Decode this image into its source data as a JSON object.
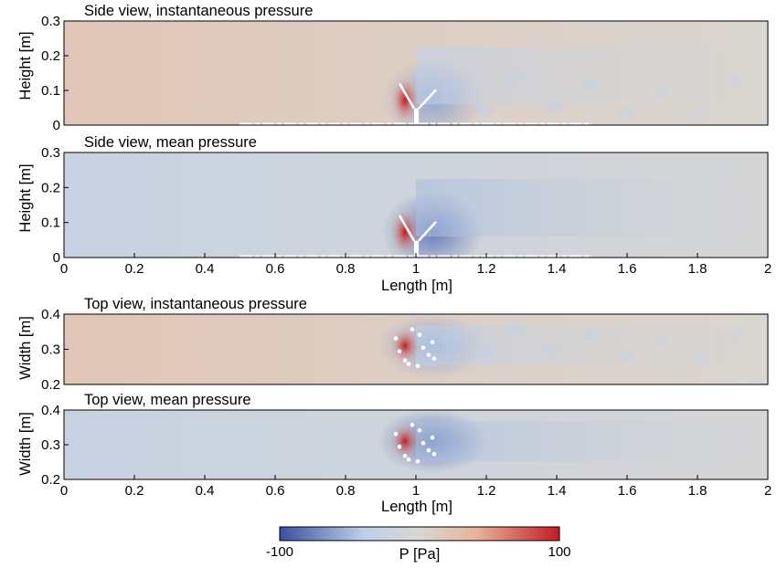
{
  "colors": {
    "low": "#3a4fa1",
    "mid_low": "#bcd0ea",
    "mid": "#d9d6d2",
    "mid_high": "#e9b49a",
    "high": "#c01d23",
    "frame": "#000000"
  },
  "chart_data": [
    {
      "type": "heatmap",
      "title": "Side view, instantaneous pressure",
      "xlabel": "",
      "ylabel": "Height [m]",
      "xlim": [
        0,
        2
      ],
      "ylim": [
        0,
        0.3
      ],
      "xticks": [],
      "yticks": [
        "0",
        "0.1",
        "0.2",
        "0.3"
      ],
      "field": {
        "background_pressure_upstream": 20,
        "background_pressure_downstream": 0,
        "stagnation_peak": 100,
        "wake_min": -60,
        "obstacle_x": 1.0,
        "obstacle_height": 0.12,
        "wake_turbulent": true
      }
    },
    {
      "type": "heatmap",
      "title": "Side view, mean pressure",
      "xlabel": "Length [m]",
      "ylabel": "Height [m]",
      "xlim": [
        0,
        2
      ],
      "ylim": [
        0,
        0.3
      ],
      "xticks": [
        "0",
        "0.2",
        "0.4",
        "0.6",
        "0.8",
        "1",
        "1.2",
        "1.4",
        "1.6",
        "1.8",
        "2"
      ],
      "yticks": [
        "0",
        "0.1",
        "0.2",
        "0.3"
      ],
      "field": {
        "background_pressure_upstream": -25,
        "background_pressure_downstream": -5,
        "stagnation_peak": 100,
        "wake_min": -80,
        "obstacle_x": 1.0,
        "obstacle_height": 0.12,
        "wake_turbulent": false
      }
    },
    {
      "type": "heatmap",
      "title": "Top view, instantaneous pressure",
      "xlabel": "",
      "ylabel": "Width [m]",
      "xlim": [
        0,
        2
      ],
      "ylim": [
        0.2,
        0.4
      ],
      "xticks": [],
      "yticks": [
        "0.2",
        "0.3",
        "0.4"
      ],
      "field": {
        "background_pressure_upstream": 20,
        "background_pressure_downstream": 0,
        "stagnation_peak": 100,
        "wake_min": -60,
        "obstacle_x": 1.0,
        "obstacle_center": 0.31,
        "wake_turbulent": true
      }
    },
    {
      "type": "heatmap",
      "title": "Top view, mean pressure",
      "xlabel": "Length [m]",
      "ylabel": "Width [m]",
      "xlim": [
        0,
        2
      ],
      "ylim": [
        0.2,
        0.4
      ],
      "xticks": [
        "0",
        "0.2",
        "0.4",
        "0.6",
        "0.8",
        "1",
        "1.2",
        "1.4",
        "1.6",
        "1.8",
        "2"
      ],
      "yticks": [
        "0.2",
        "0.3",
        "0.4"
      ],
      "field": {
        "background_pressure_upstream": -25,
        "background_pressure_downstream": -5,
        "stagnation_peak": 100,
        "wake_min": -80,
        "obstacle_x": 1.0,
        "obstacle_center": 0.31,
        "wake_turbulent": false
      }
    }
  ],
  "colorbar": {
    "label": "P [Pa]",
    "min": -100,
    "max": 100,
    "min_label": "-100",
    "max_label": "100"
  }
}
